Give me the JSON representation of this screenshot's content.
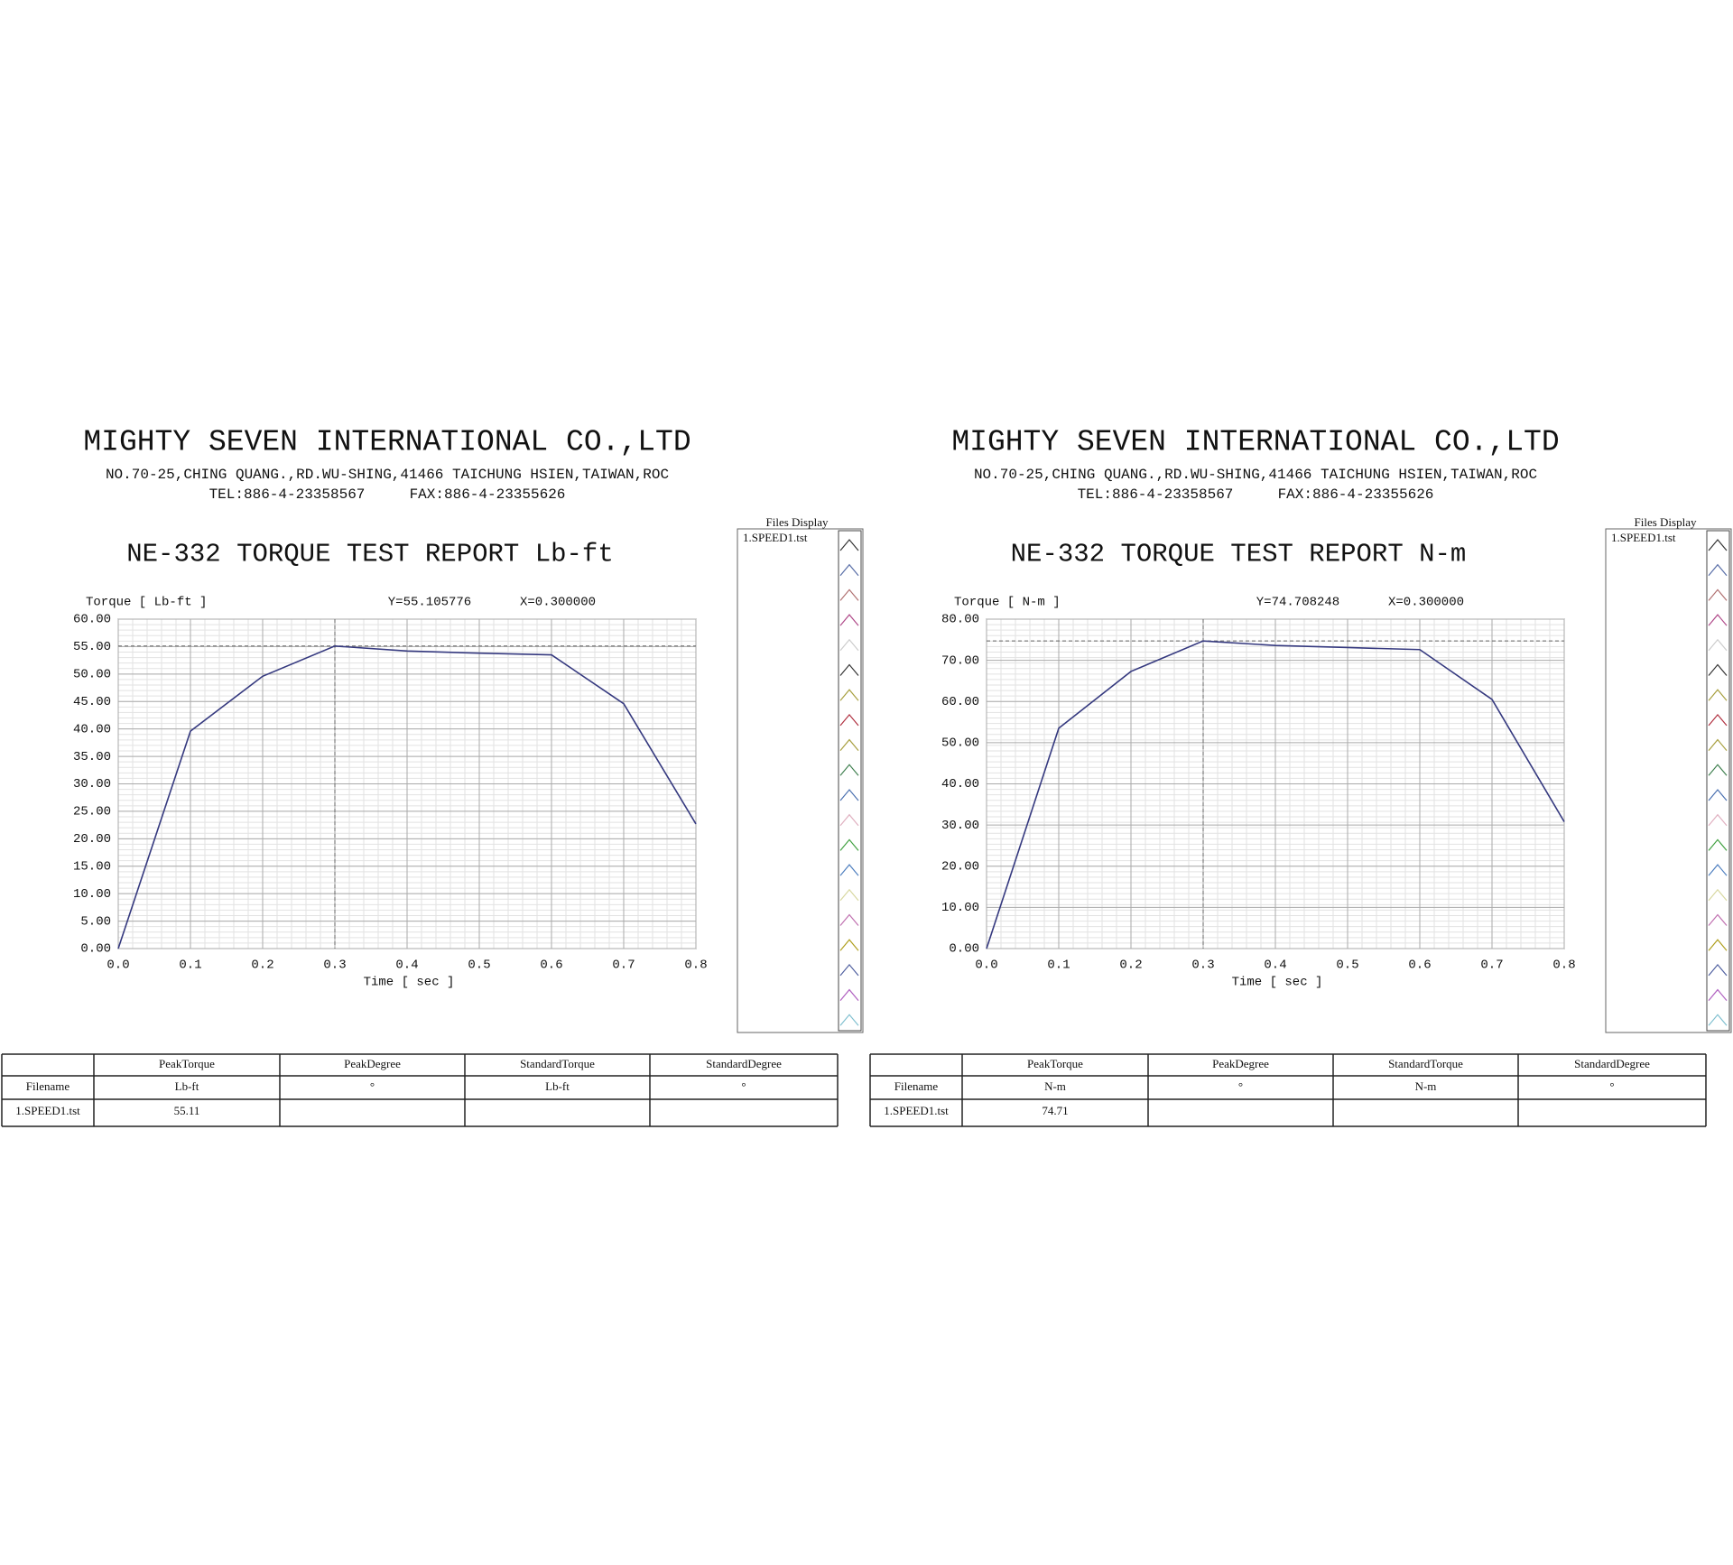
{
  "header": {
    "company": "MIGHTY SEVEN INTERNATIONAL CO.,LTD",
    "address": "NO.70-25,CHING QUANG.,RD.WU-SHING,41466 TAICHUNG HSIEN,TAIWAN,ROC",
    "tel": "TEL:886-4-23358567",
    "fax": "FAX:886-4-23355626"
  },
  "files_display_title": "Files Display",
  "chart_data": [
    {
      "type": "line",
      "title": "NE-332 TORQUE TEST REPORT Lb-ft",
      "y_label": "Torque [ Lb-ft ]",
      "x_label": "Time [ sec ]",
      "x": [
        0,
        0.1,
        0.2,
        0.3,
        0.4,
        0.5,
        0.6,
        0.7,
        0.8
      ],
      "series": [
        {
          "name": "1.SPEED1.tst",
          "color": "#35397f",
          "values": [
            0,
            39.6,
            49.6,
            55.1,
            54.2,
            53.8,
            53.5,
            44.6,
            22.7
          ]
        }
      ],
      "cursor": {
        "x": 0.3,
        "y": 55.105776,
        "label_x": "X=0.300000",
        "label_y": "Y=55.105776"
      },
      "xlim": [
        0,
        0.8
      ],
      "ylim": [
        0,
        60
      ],
      "xticks": [
        {
          "value": 0,
          "label": "0.0"
        },
        0.1,
        0.2,
        0.3,
        0.4,
        0.5,
        0.6,
        0.7,
        0.8
      ],
      "yticks": [
        {
          "value": 0,
          "label": "0.00"
        },
        {
          "value": 5,
          "label": "5.00"
        },
        {
          "value": 10,
          "label": "10.00"
        },
        {
          "value": 15,
          "label": "15.00"
        },
        {
          "value": 20,
          "label": "20.00"
        },
        {
          "value": 25,
          "label": "25.00"
        },
        {
          "value": 30,
          "label": "30.00"
        },
        {
          "value": 35,
          "label": "35.00"
        },
        {
          "value": 40,
          "label": "40.00"
        },
        {
          "value": 45,
          "label": "45.00"
        },
        {
          "value": 50,
          "label": "50.00"
        },
        {
          "value": 55,
          "label": "55.00"
        },
        {
          "value": 60,
          "label": "60.00"
        }
      ],
      "grid": true
    },
    {
      "type": "line",
      "title": "NE-332 TORQUE TEST REPORT N-m",
      "y_label": "Torque [ N-m  ]",
      "x_label": "Time [ sec ]",
      "x": [
        0,
        0.1,
        0.2,
        0.3,
        0.4,
        0.5,
        0.6,
        0.7,
        0.8
      ],
      "series": [
        {
          "name": "1.SPEED1.tst",
          "color": "#35397f",
          "values": [
            0,
            53.5,
            67.3,
            74.7,
            73.6,
            73.1,
            72.6,
            60.5,
            30.8
          ]
        }
      ],
      "cursor": {
        "x": 0.3,
        "y": 74.708248,
        "label_x": "X=0.300000",
        "label_y": "Y=74.708248"
      },
      "xlim": [
        0,
        0.8
      ],
      "ylim": [
        0,
        80
      ],
      "xticks": [
        {
          "value": 0,
          "label": "0.0"
        },
        0.1,
        0.2,
        0.3,
        0.4,
        0.5,
        0.6,
        0.7,
        0.8
      ],
      "yticks": [
        {
          "value": 0,
          "label": "0.00"
        },
        {
          "value": 10,
          "label": "10.00"
        },
        {
          "value": 20,
          "label": "20.00"
        },
        {
          "value": 30,
          "label": "30.00"
        },
        {
          "value": 40,
          "label": "40.00"
        },
        {
          "value": 50,
          "label": "50.00"
        },
        {
          "value": 60,
          "label": "60.00"
        },
        {
          "value": 70,
          "label": "70.00"
        },
        {
          "value": 80,
          "label": "80.00"
        }
      ],
      "grid": true
    }
  ],
  "tables": [
    {
      "columns": [
        "PeakTorque",
        "PeakDegree",
        "StandardTorque",
        "StandardDegree"
      ],
      "row_label": "Filename",
      "units": [
        "Lb-ft",
        "°",
        "Lb-ft",
        "°"
      ],
      "peak_torque": 55.11
    },
    {
      "columns": [
        "PeakTorque",
        "PeakDegree",
        "StandardTorque",
        "StandardDegree"
      ],
      "row_label": "Filename",
      "units": [
        "N-m",
        "°",
        "N-m",
        "°"
      ],
      "peak_torque": 74.71
    }
  ]
}
